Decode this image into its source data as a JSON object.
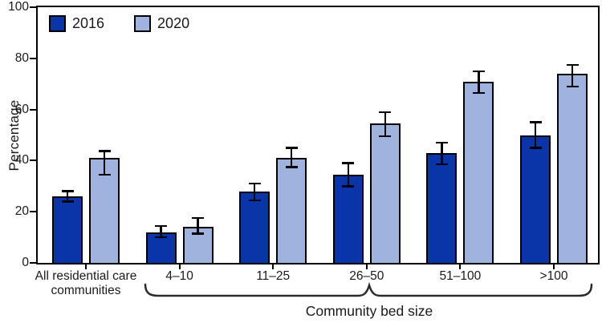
{
  "chart_data": {
    "type": "bar",
    "title": "",
    "ylabel": "Percentage",
    "group_axis_label": "Community bed size",
    "ylim": [
      0,
      100
    ],
    "yticks": [
      0,
      20,
      40,
      60,
      80,
      100
    ],
    "grid": false,
    "legend": {
      "position": "top-left",
      "entries": [
        "2016",
        "2020"
      ]
    },
    "categories": [
      "All residential care communities",
      "4–10",
      "11–25",
      "26–50",
      "51–100",
      ">100"
    ],
    "category_display": [
      [
        "All residential care",
        "communities"
      ],
      [
        "4–10"
      ],
      [
        "11–25"
      ],
      [
        "26–50"
      ],
      [
        "51–100"
      ],
      [
        ">100"
      ]
    ],
    "braced_categories": [
      "4–10",
      "11–25",
      "26–50",
      "51–100",
      ">100"
    ],
    "error_bars": true,
    "series": [
      {
        "name": "2016",
        "color": "#0a35a9",
        "values": [
          26,
          12,
          28,
          34.5,
          43,
          50
        ],
        "ci_low": [
          24,
          10,
          24.5,
          30,
          38.5,
          45
        ],
        "ci_high": [
          28,
          14.5,
          31,
          39,
          47,
          55
        ]
      },
      {
        "name": "2020",
        "color": "#a0b2de",
        "values": [
          41,
          14,
          41,
          54.5,
          71,
          74
        ],
        "ci_low": [
          34.5,
          11.5,
          37.5,
          49.5,
          66.5,
          69
        ],
        "ci_high": [
          43.8,
          17.5,
          45,
          59,
          75,
          77.5
        ]
      }
    ]
  },
  "colors": {
    "axis": "#000000",
    "brace": "#2b2b2b",
    "bar_2016": "#0a35a9",
    "bar_2020": "#a0b2de"
  }
}
